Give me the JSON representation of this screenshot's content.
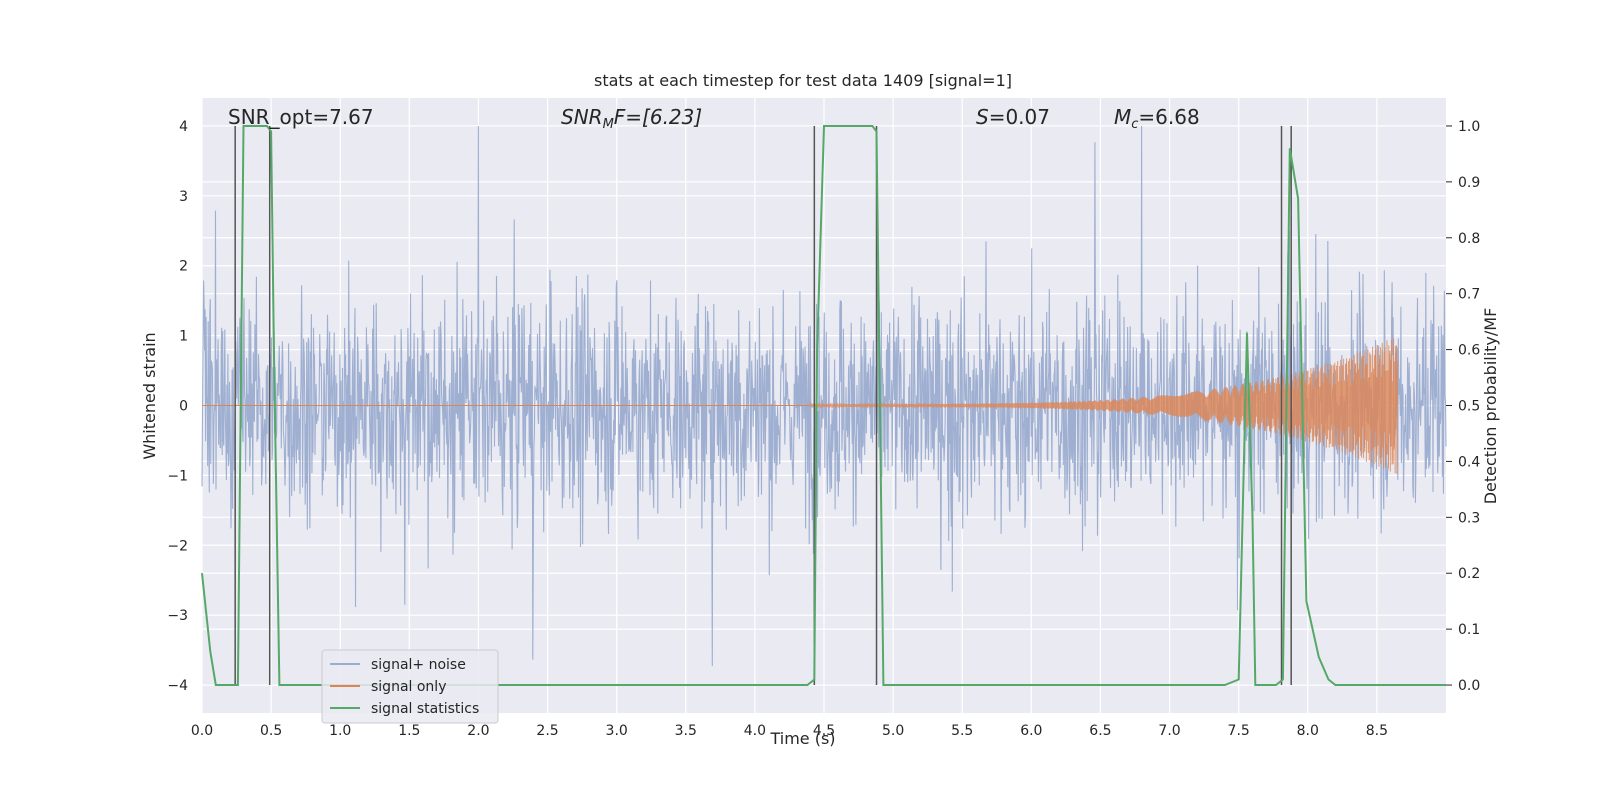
{
  "chart_data": {
    "type": "line",
    "title": "stats at each timestep for test data 1409 [signal=1]",
    "xlabel": "Time (s)",
    "ylabel": "Whitened strain",
    "ylabel_right": "Detection probability/MF",
    "xlim": [
      0.0,
      9.0
    ],
    "ylim": [
      -4.4,
      4.4
    ],
    "ylim_right": [
      -0.05,
      1.05
    ],
    "x_ticks": [
      "0.0",
      "0.5",
      "1.0",
      "1.5",
      "2.0",
      "2.5",
      "3.0",
      "3.5",
      "4.0",
      "4.5",
      "5.0",
      "5.5",
      "6.0",
      "6.5",
      "7.0",
      "7.5",
      "8.0",
      "8.5"
    ],
    "y_ticks": [
      "4",
      "3",
      "2",
      "1",
      "0",
      "−1",
      "−2",
      "−3",
      "−4"
    ],
    "y_ticks_right": [
      "1.0",
      "0.9",
      "0.8",
      "0.7",
      "0.6",
      "0.5",
      "0.4",
      "0.3",
      "0.2",
      "0.1",
      "0.0"
    ],
    "grid": true,
    "legend_position": "lower-left",
    "colors": {
      "background": "#eaeaf2",
      "grid": "#ffffff",
      "noise": "#9aaccf",
      "signal": "#dd8452",
      "stats": "#55a868",
      "vline": "#555555"
    },
    "annotations": {
      "snr_opt": "SNR_opt=7.67",
      "snr_mf_main": "SNR",
      "snr_mf_sub": "M",
      "snr_mf_rest": "F=[6.23]",
      "s_var": "S",
      "s_rest": "=0.07",
      "mc_main": "M",
      "mc_sub": "c",
      "mc_rest": "=6.68"
    },
    "series": [
      {
        "name": "signal+ noise",
        "description_color": "noise",
        "envelope": {
          "typical_abs": 1.6,
          "max_abs": 4.0
        }
      },
      {
        "name": "signal only",
        "chirp": {
          "start": 4.4,
          "end": 8.65,
          "amp_start": 0.02,
          "amp_end": 1.0
        }
      },
      {
        "name": "signal statistics",
        "axis": "right",
        "x": [
          0.0,
          0.06,
          0.1,
          0.24,
          0.26,
          0.3,
          0.47,
          0.5,
          0.52,
          0.56,
          1.0,
          2.0,
          3.0,
          4.0,
          4.38,
          4.43,
          4.45,
          4.5,
          4.7,
          4.85,
          4.88,
          4.93,
          5.0,
          6.0,
          6.6,
          7.0,
          7.4,
          7.5,
          7.56,
          7.6,
          7.62,
          7.7,
          7.77,
          7.82,
          7.87,
          7.93,
          7.99,
          8.08,
          8.15,
          8.2,
          8.5,
          9.0
        ],
        "y": [
          0.2,
          0.06,
          0.0,
          0.0,
          0.0,
          1.0,
          1.0,
          0.99,
          0.6,
          0.0,
          0.0,
          0.0,
          0.0,
          0.0,
          0.0,
          0.01,
          0.6,
          1.0,
          1.0,
          1.0,
          0.99,
          0.0,
          0.0,
          0.0,
          0.0,
          0.0,
          0.0,
          0.01,
          0.63,
          0.3,
          0.0,
          0.0,
          0.0,
          0.01,
          0.96,
          0.87,
          0.15,
          0.05,
          0.01,
          0.0,
          0.0,
          0.0
        ]
      }
    ],
    "vlines": [
      {
        "x": 0.24,
        "y_right": [
          0.0,
          1.0
        ]
      },
      {
        "x": 0.49,
        "y_right": [
          0.0,
          1.0
        ]
      },
      {
        "x": 4.43,
        "y_right": [
          0.0,
          1.0
        ]
      },
      {
        "x": 4.88,
        "y_right": [
          0.0,
          1.0
        ]
      },
      {
        "x": 7.81,
        "y_right": [
          0.0,
          1.0
        ]
      },
      {
        "x": 7.88,
        "y_right": [
          0.0,
          1.0
        ]
      }
    ],
    "legend": [
      "signal+ noise",
      "signal only",
      "signal statistics"
    ]
  }
}
